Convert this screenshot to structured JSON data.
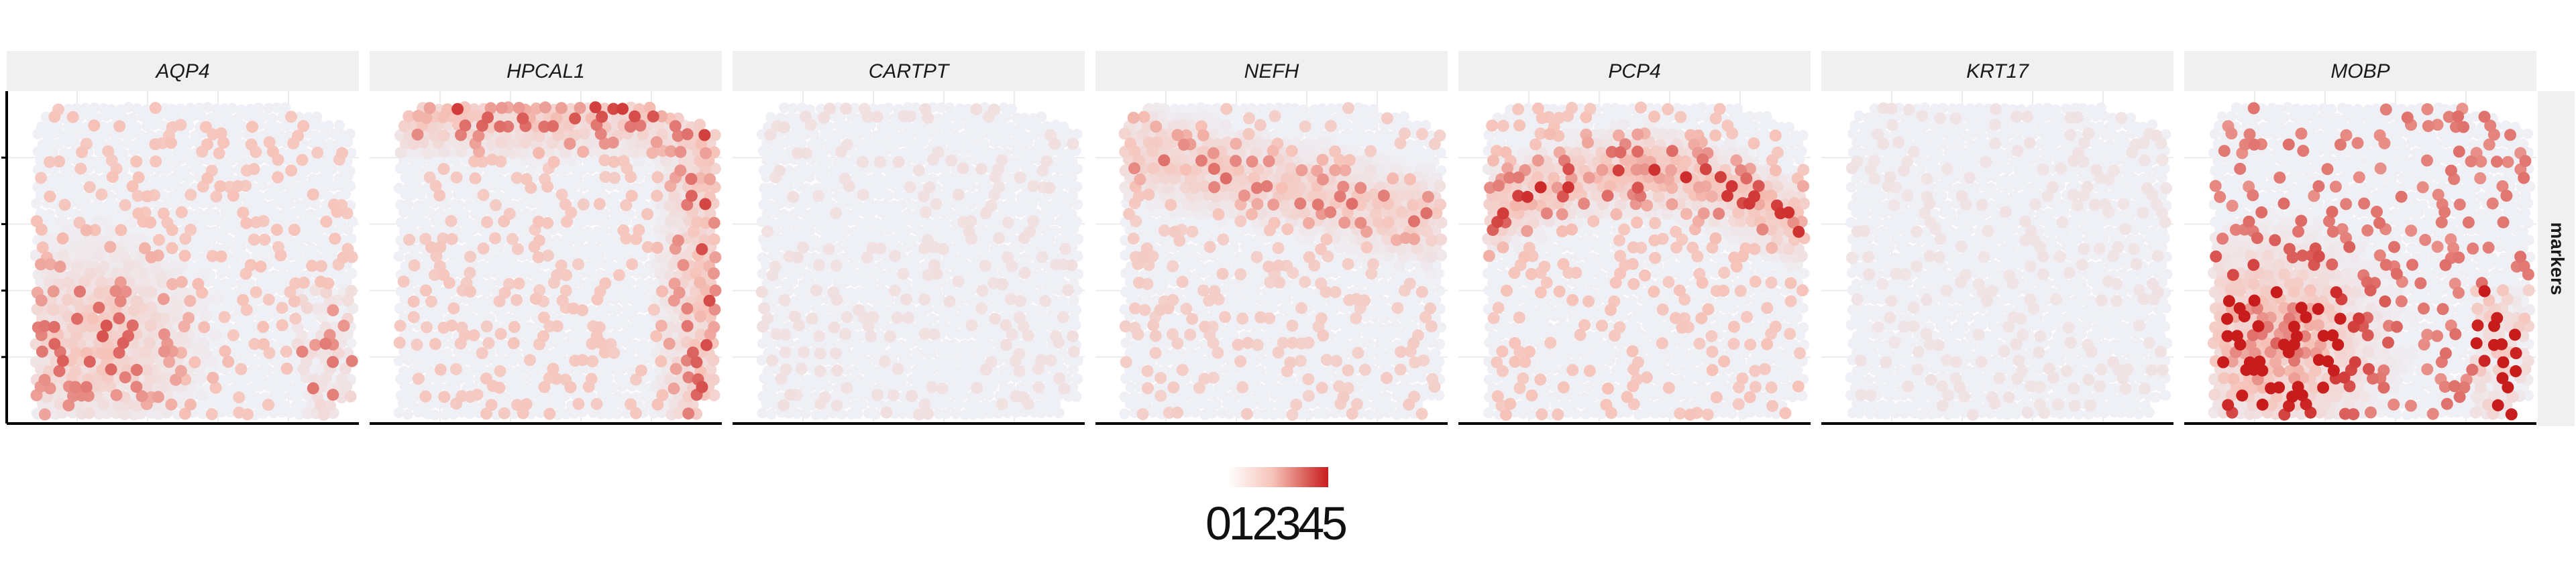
{
  "chart_data": {
    "type": "scatter",
    "description_panels": "spatial transcriptomics tissue spots coloured by marker gene expression",
    "facet_row_label": "markers",
    "panels": [
      {
        "gene": "AQP4",
        "pattern": "lower-left",
        "level": 1.6
      },
      {
        "gene": "HPCAL1",
        "pattern": "ring",
        "level": 1.5
      },
      {
        "gene": "CARTPT",
        "pattern": "sparse",
        "level": 0.6
      },
      {
        "gene": "NEFH",
        "pattern": "upper-band",
        "level": 1.3
      },
      {
        "gene": "PCP4",
        "pattern": "mid-band",
        "level": 1.6
      },
      {
        "gene": "KRT17",
        "pattern": "sparse",
        "level": 0.5
      },
      {
        "gene": "MOBP",
        "pattern": "lower-left",
        "level": 2.6
      }
    ],
    "color_scale": {
      "low": "#eef0f6",
      "mid": "#f6c2b8",
      "high": "#c81c1c",
      "range": [
        0,
        5
      ]
    },
    "legend": {
      "ticks": [
        "0",
        "1",
        "2",
        "3",
        "4",
        "5"
      ],
      "placement": "bottom-center"
    },
    "grid": true
  }
}
